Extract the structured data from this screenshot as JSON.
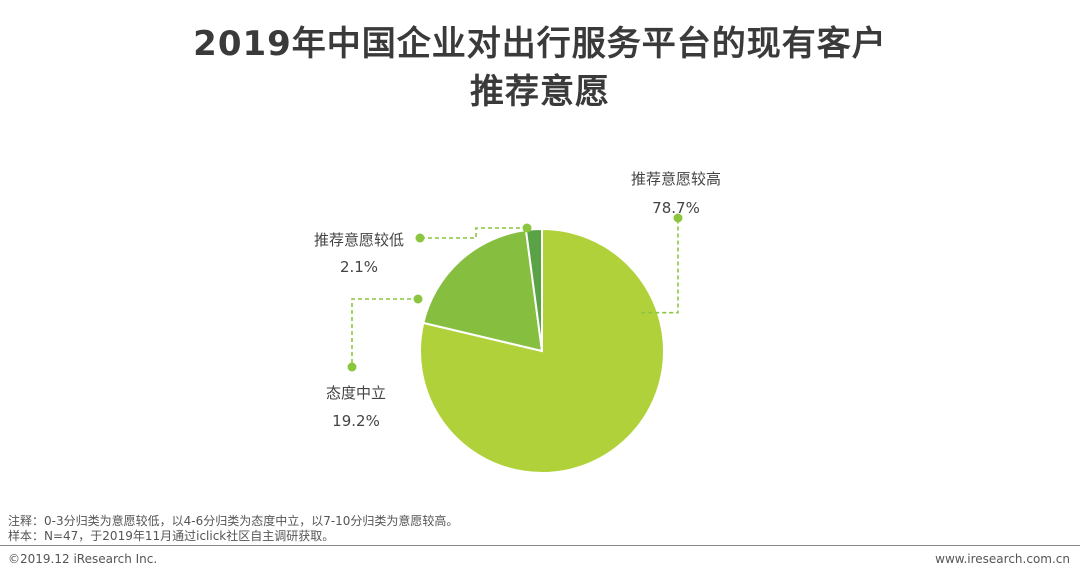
{
  "title": {
    "line1": "2019年中国企业对出行服务平台的现有客户",
    "line2": "推荐意愿"
  },
  "chart_data": {
    "type": "pie",
    "slices": [
      {
        "label": "推荐意愿较高",
        "value": 78.7,
        "value_label": "78.7%",
        "color": "#b1d13a"
      },
      {
        "label": "态度中立",
        "value": 19.2,
        "value_label": "19.2%",
        "color": "#86bf40"
      },
      {
        "label": "推荐意愿较低",
        "value": 2.1,
        "value_label": "2.1%",
        "color": "#5aa246"
      }
    ],
    "leader_color": "#8cc63f"
  },
  "notes": {
    "line1": "注释：0-3分归类为意愿较低，以4-6分归类为态度中立，以7-10分归类为意愿较高。",
    "line2": "样本：N=47，于2019年11月通过iclick社区自主调研获取。"
  },
  "footer": {
    "left": "©2019.12 iResearch Inc.",
    "right": "www.iresearch.com.cn"
  }
}
